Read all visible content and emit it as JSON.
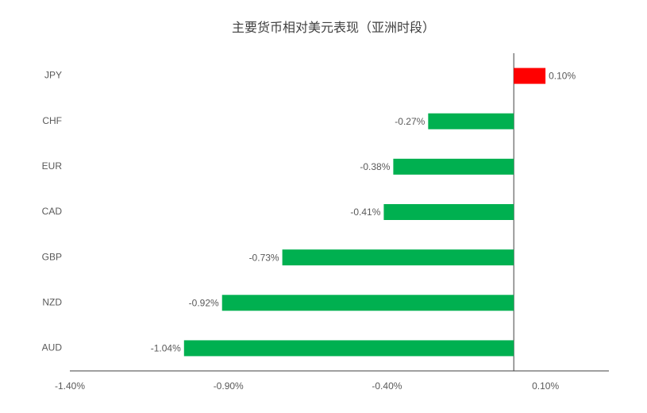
{
  "chart_data": {
    "type": "hbar",
    "title": "主要货币相对美元表现（亚洲时段）",
    "categories": [
      "JPY",
      "CHF",
      "EUR",
      "CAD",
      "GBP",
      "NZD",
      "AUD"
    ],
    "values": [
      0.1,
      -0.27,
      -0.38,
      -0.41,
      -0.73,
      -0.92,
      -1.04
    ],
    "value_labels": [
      "0.10%",
      "-0.27%",
      "-0.38%",
      "-0.41%",
      "-0.73%",
      "-0.92%",
      "-1.04%"
    ],
    "colors": [
      "#ff0000",
      "#00b050",
      "#00b050",
      "#00b050",
      "#00b050",
      "#00b050",
      "#00b050"
    ],
    "xlim": [
      -1.4,
      0.3
    ],
    "xticks": [
      {
        "value": -1.4,
        "label": "-1.40%"
      },
      {
        "value": -0.9,
        "label": "-0.90%"
      },
      {
        "value": -0.4,
        "label": "-0.40%"
      },
      {
        "value": 0.1,
        "label": "0.10%"
      }
    ],
    "grid": false
  }
}
